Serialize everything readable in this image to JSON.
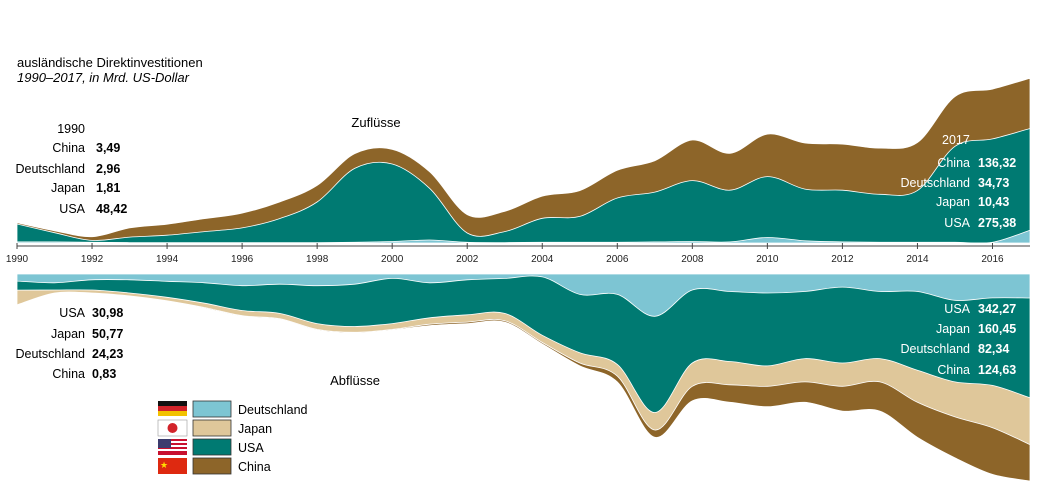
{
  "chart_data": {
    "type": "area",
    "title": "ausländische Direktinvestitionen",
    "subtitle": "1990–2017, in Mrd. US-Dollar",
    "x_ticks": [
      "1990",
      "1992",
      "1994",
      "1996",
      "1998",
      "2000",
      "2002",
      "2004",
      "2006",
      "2008",
      "2010",
      "2012",
      "2014",
      "2016"
    ],
    "x": [
      1990,
      1991,
      1992,
      1993,
      1994,
      1995,
      1996,
      1997,
      1998,
      1999,
      2000,
      2001,
      2002,
      2003,
      2004,
      2005,
      2006,
      2007,
      2008,
      2009,
      2010,
      2011,
      2012,
      2013,
      2014,
      2015,
      2016,
      2017
    ],
    "inflows": {
      "caption": "Zuflüsse",
      "series": [
        {
          "name": "Deutschland",
          "key": "deutschland",
          "values": [
            2.96,
            3,
            2,
            1,
            1,
            1,
            1,
            1,
            1,
            2,
            4,
            8,
            2,
            1,
            2,
            2,
            2,
            3,
            4,
            3,
            15,
            6,
            3,
            2,
            2,
            2,
            2,
            34.73
          ]
        },
        {
          "name": "USA",
          "key": "usa",
          "values": [
            48.42,
            25,
            5,
            15,
            20,
            30,
            40,
            65,
            110,
            200,
            210,
            140,
            25,
            30,
            65,
            70,
            120,
            135,
            165,
            140,
            165,
            140,
            140,
            130,
            140,
            260,
            280,
            275.38
          ]
        },
        {
          "name": "China",
          "key": "china",
          "values": [
            3.49,
            5,
            10,
            25,
            30,
            35,
            40,
            45,
            45,
            40,
            40,
            45,
            50,
            55,
            60,
            70,
            75,
            85,
            110,
            100,
            115,
            125,
            125,
            125,
            130,
            135,
            135,
            136.32
          ]
        }
      ]
    },
    "outflows": {
      "caption": "Abflüsse",
      "series": [
        {
          "name": "Deutschland",
          "key": "deutschland",
          "values": [
            24.23,
            30,
            20,
            20,
            25,
            30,
            40,
            35,
            40,
            35,
            15,
            30,
            20,
            15,
            10,
            70,
            70,
            145,
            55,
            60,
            65,
            60,
            45,
            60,
            60,
            90,
            82,
            82.34
          ]
        },
        {
          "name": "USA",
          "key": "usa",
          "values": [
            30.98,
            25,
            35,
            45,
            55,
            70,
            85,
            100,
            130,
            145,
            155,
            120,
            120,
            120,
            200,
            200,
            240,
            330,
            250,
            240,
            250,
            230,
            260,
            230,
            270,
            280,
            300,
            342.27
          ]
        },
        {
          "name": "Japan",
          "key": "japan",
          "values": [
            50.77,
            10,
            10,
            10,
            12,
            15,
            18,
            18,
            20,
            20,
            20,
            22,
            25,
            25,
            25,
            35,
            40,
            60,
            80,
            80,
            70,
            80,
            80,
            80,
            110,
            120,
            145,
            160.45
          ]
        },
        {
          "name": "China",
          "key": "china",
          "values": [
            0.83,
            1,
            1,
            1,
            1,
            2,
            2,
            2,
            2,
            2,
            2,
            5,
            5,
            5,
            5,
            10,
            20,
            25,
            50,
            60,
            70,
            70,
            85,
            100,
            120,
            140,
            160,
            124.63
          ]
        }
      ]
    },
    "labels_1990": {
      "year": "1990",
      "inflows": [
        {
          "name": "China",
          "value": "3,49"
        },
        {
          "name": "Deutschland",
          "value": "2,96"
        },
        {
          "name": "Japan",
          "value": "1,81"
        },
        {
          "name": "USA",
          "value": "48,42"
        }
      ],
      "outflows": [
        {
          "name": "USA",
          "value": "30,98"
        },
        {
          "name": "Japan",
          "value": "50,77"
        },
        {
          "name": "Deutschland",
          "value": "24,23"
        },
        {
          "name": "China",
          "value": "0,83"
        }
      ]
    },
    "labels_2017": {
      "year": "2017",
      "inflows": [
        {
          "name": "China",
          "value": "136,32"
        },
        {
          "name": "Deutschland",
          "value": "34,73"
        },
        {
          "name": "Japan",
          "value": "10,43"
        },
        {
          "name": "USA",
          "value": "275,38"
        }
      ],
      "outflows": [
        {
          "name": "USA",
          "value": "342,27"
        },
        {
          "name": "Japan",
          "value": "160,45"
        },
        {
          "name": "Deutschland",
          "value": "82,34"
        },
        {
          "name": "China",
          "value": "124,63"
        }
      ]
    },
    "legend": [
      {
        "name": "Deutschland",
        "key": "deutschland",
        "color": "#7dc5d3",
        "flag": "germany-flag-icon"
      },
      {
        "name": "Japan",
        "key": "japan",
        "color": "#dfc79a",
        "flag": "japan-flag-icon"
      },
      {
        "name": "USA",
        "key": "usa",
        "color": "#007a72",
        "flag": "usa-flag-icon"
      },
      {
        "name": "China",
        "key": "china",
        "color": "#8d6529",
        "flag": "china-flag-icon"
      }
    ],
    "colors": {
      "deutschland": "#7dc5d3",
      "japan": "#dfc79a",
      "usa": "#007a72",
      "china": "#8d6529",
      "outline": "#ffffff"
    }
  }
}
